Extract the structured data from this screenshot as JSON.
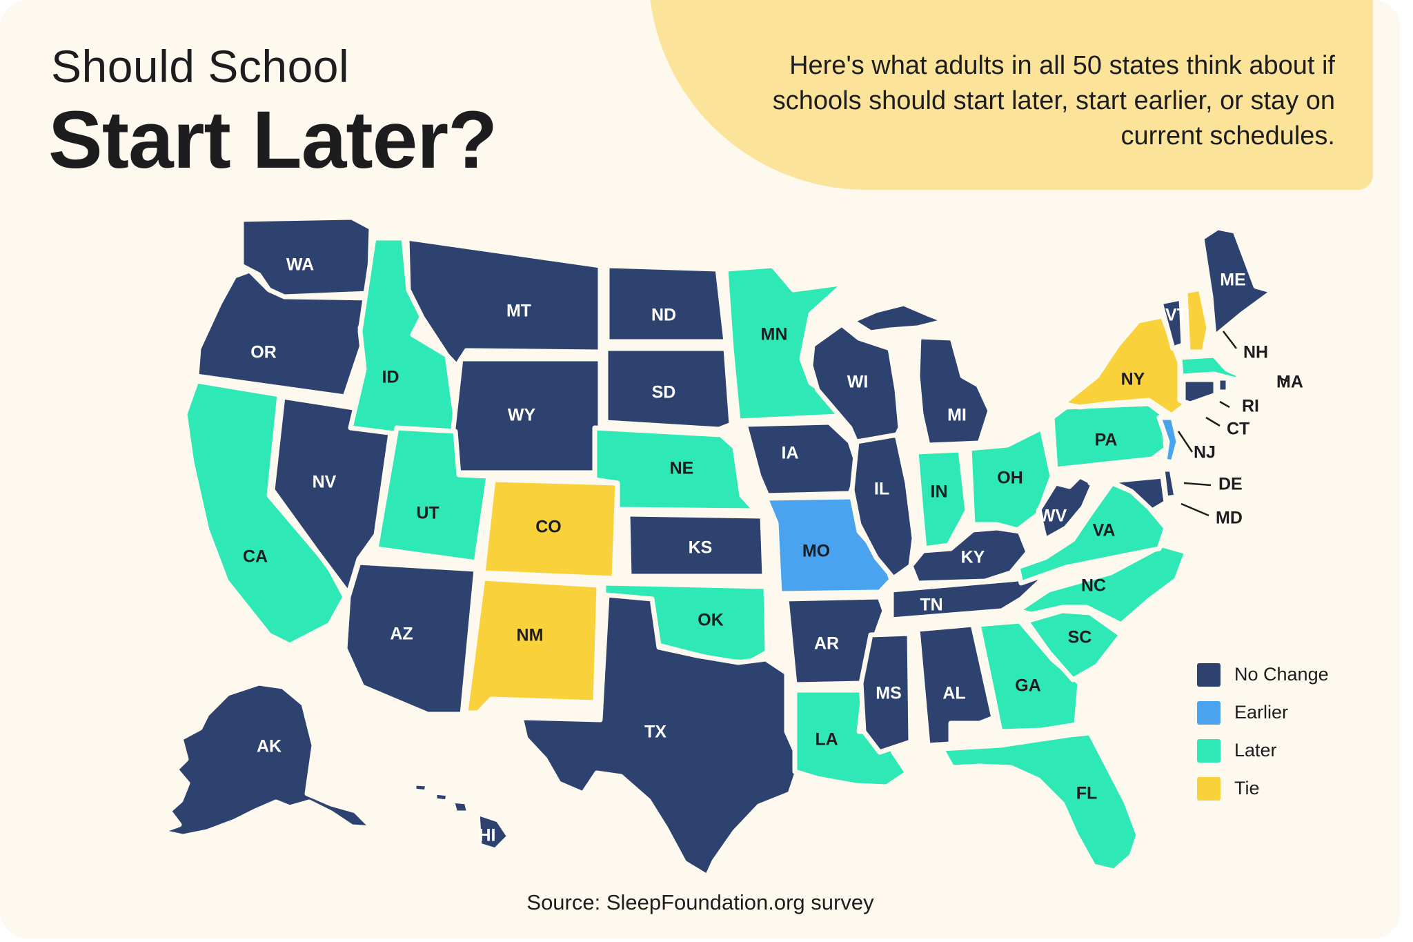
{
  "header": {
    "title_line1": "Should School",
    "title_line2": "Start Later?",
    "subtitle": "Here's what adults in all 50 states think about if schools should start later, start earlier, or stay on current schedules."
  },
  "legend": [
    {
      "key": "no_change",
      "label": "No Change",
      "color": "#2e4270"
    },
    {
      "key": "earlier",
      "label": "Earlier",
      "color": "#4aa3ee"
    },
    {
      "key": "later",
      "label": "Later",
      "color": "#2ee8b5"
    },
    {
      "key": "tie",
      "label": "Tie",
      "color": "#f8d13b"
    }
  ],
  "states": [
    {
      "abbr": "WA",
      "category": "no_change"
    },
    {
      "abbr": "OR",
      "category": "no_change"
    },
    {
      "abbr": "CA",
      "category": "later"
    },
    {
      "abbr": "NV",
      "category": "no_change"
    },
    {
      "abbr": "ID",
      "category": "later"
    },
    {
      "abbr": "MT",
      "category": "no_change"
    },
    {
      "abbr": "WY",
      "category": "no_change"
    },
    {
      "abbr": "UT",
      "category": "later"
    },
    {
      "abbr": "AZ",
      "category": "no_change"
    },
    {
      "abbr": "CO",
      "category": "tie"
    },
    {
      "abbr": "NM",
      "category": "tie"
    },
    {
      "abbr": "ND",
      "category": "no_change"
    },
    {
      "abbr": "SD",
      "category": "no_change"
    },
    {
      "abbr": "NE",
      "category": "later"
    },
    {
      "abbr": "KS",
      "category": "no_change"
    },
    {
      "abbr": "OK",
      "category": "later"
    },
    {
      "abbr": "TX",
      "category": "no_change"
    },
    {
      "abbr": "MN",
      "category": "later"
    },
    {
      "abbr": "IA",
      "category": "no_change"
    },
    {
      "abbr": "MO",
      "category": "earlier"
    },
    {
      "abbr": "AR",
      "category": "no_change"
    },
    {
      "abbr": "LA",
      "category": "later"
    },
    {
      "abbr": "WI",
      "category": "no_change"
    },
    {
      "abbr": "IL",
      "category": "no_change"
    },
    {
      "abbr": "MS",
      "category": "no_change"
    },
    {
      "abbr": "MI",
      "category": "no_change"
    },
    {
      "abbr": "IN",
      "category": "later"
    },
    {
      "abbr": "OH",
      "category": "later"
    },
    {
      "abbr": "KY",
      "category": "no_change"
    },
    {
      "abbr": "TN",
      "category": "no_change"
    },
    {
      "abbr": "AL",
      "category": "no_change"
    },
    {
      "abbr": "GA",
      "category": "later"
    },
    {
      "abbr": "FL",
      "category": "later"
    },
    {
      "abbr": "SC",
      "category": "later"
    },
    {
      "abbr": "NC",
      "category": "later"
    },
    {
      "abbr": "VA",
      "category": "later"
    },
    {
      "abbr": "WV",
      "category": "no_change"
    },
    {
      "abbr": "PA",
      "category": "later"
    },
    {
      "abbr": "NY",
      "category": "tie"
    },
    {
      "abbr": "VT",
      "category": "no_change"
    },
    {
      "abbr": "NH",
      "category": "tie"
    },
    {
      "abbr": "ME",
      "category": "no_change"
    },
    {
      "abbr": "MA",
      "category": "later"
    },
    {
      "abbr": "RI",
      "category": "no_change"
    },
    {
      "abbr": "CT",
      "category": "no_change"
    },
    {
      "abbr": "NJ",
      "category": "earlier"
    },
    {
      "abbr": "DE",
      "category": "no_change"
    },
    {
      "abbr": "MD",
      "category": "no_change"
    },
    {
      "abbr": "AK",
      "category": "no_change"
    },
    {
      "abbr": "HI",
      "category": "no_change"
    }
  ],
  "footer": {
    "source": "Source: SleepFoundation.org survey"
  }
}
